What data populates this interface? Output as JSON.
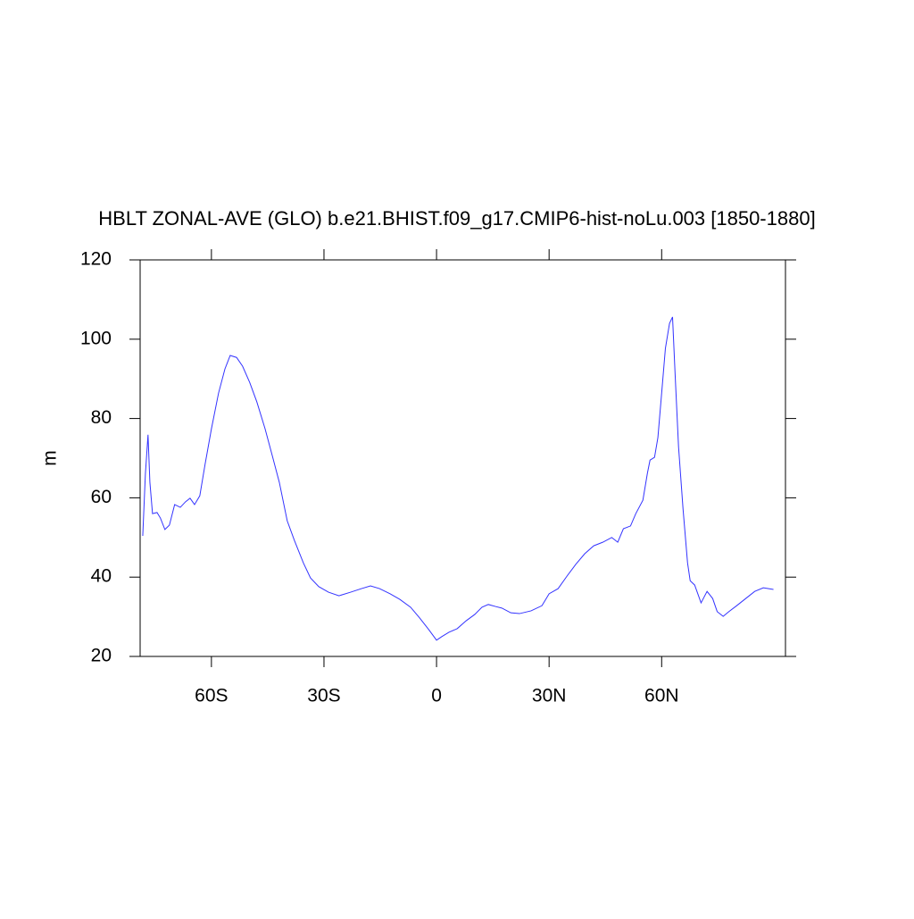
{
  "chart_data": {
    "type": "line",
    "title": "HBLT ZONAL-AVE (GLO) b.e21.BHIST.f09_g17.CMIP6-hist-noLu.003 [1850-1880]",
    "y_label": "m",
    "xlim": [
      -79,
      93
    ],
    "ylim": [
      20,
      120
    ],
    "xticks": [
      {
        "value": -60,
        "label": "60S"
      },
      {
        "value": -30,
        "label": "30S"
      },
      0,
      {
        "value": 30,
        "label": "30N"
      },
      {
        "value": 60,
        "label": "60N"
      }
    ],
    "yticks": [
      20,
      40,
      60,
      80,
      100,
      120
    ],
    "series": [
      {
        "color": "#3333ff",
        "x": [
          -78.3,
          -77.6,
          -76.9,
          -76.4,
          -75.7,
          -74.5,
          -73.6,
          -72.4,
          -71.2,
          -69.8,
          -68.3,
          -66.9,
          -65.7,
          -64.5,
          -63.1,
          -61.7,
          -60,
          -58.1,
          -56.4,
          -55,
          -53.3,
          -51.7,
          -49.8,
          -47.9,
          -45.7,
          -43.8,
          -41.9,
          -39.8,
          -37.9,
          -35.5,
          -33.6,
          -31.4,
          -28.8,
          -26,
          -22.9,
          -20,
          -17.6,
          -15.2,
          -12.4,
          -9.8,
          -6.9,
          -4.5,
          -2.1,
          0,
          1.4,
          3.3,
          5.5,
          7.9,
          10.2,
          12.1,
          13.8,
          15.7,
          17.4,
          19.8,
          22.1,
          25.2,
          28.1,
          30,
          32.4,
          34.8,
          37.1,
          39.5,
          41.9,
          44.3,
          46.7,
          48.3,
          49.8,
          51.7,
          53.1,
          55,
          56.2,
          56.9,
          58.1,
          59,
          60,
          61,
          62.1,
          62.9,
          63.6,
          64.5,
          65.7,
          66.9,
          67.6,
          68.8,
          70.5,
          72.1,
          73.6,
          74.8,
          76.4,
          77.9,
          80,
          82.4,
          84.8,
          87.1,
          89.8
        ],
        "values": [
          50.4,
          66,
          75.9,
          63.9,
          56,
          56.3,
          54.9,
          52,
          53.1,
          58.3,
          57.6,
          59,
          59.9,
          58.3,
          60.5,
          68.4,
          77.4,
          86.4,
          92.5,
          95.9,
          95.4,
          93.2,
          89.1,
          84.2,
          77.4,
          70.7,
          63.9,
          54.2,
          49.3,
          43.6,
          39.8,
          37.6,
          36.2,
          35.3,
          36.2,
          37.1,
          37.8,
          37.1,
          35.8,
          34.4,
          32.4,
          29.7,
          26.8,
          24.1,
          25,
          26.1,
          27,
          29,
          30.6,
          32.4,
          33.1,
          32.6,
          32.2,
          31,
          30.8,
          31.5,
          32.8,
          35.8,
          37.1,
          40.3,
          43.2,
          45.9,
          47.9,
          48.8,
          50,
          48.8,
          52.2,
          52.9,
          56,
          59.4,
          66.2,
          69.5,
          70.2,
          75.2,
          86.4,
          97.7,
          104,
          105.6,
          90.9,
          72.9,
          57.2,
          43.6,
          39.1,
          38,
          33.5,
          36.4,
          34.6,
          31.3,
          30.1,
          31.3,
          32.8,
          34.6,
          36.4,
          37.3,
          36.9
        ]
      }
    ]
  }
}
